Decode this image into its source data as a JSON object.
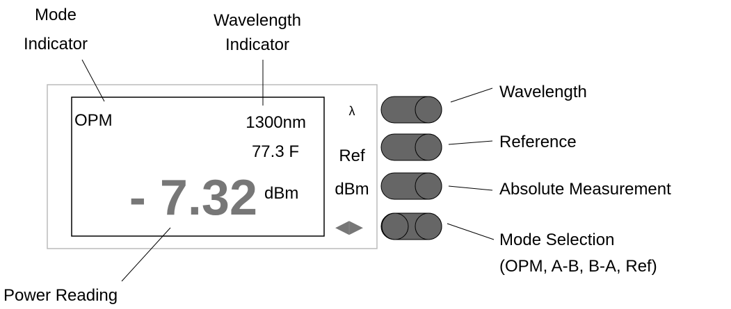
{
  "callouts": {
    "mode_indicator": [
      "Mode",
      "Indicator"
    ],
    "wavelength_indicator": [
      "Wavelength",
      "Indicator"
    ],
    "power_reading": "Power Reading",
    "wavelength": "Wavelength",
    "reference": "Reference",
    "absolute_measurement": "Absolute Measurement",
    "mode_selection": [
      "Mode Selection",
      "(OPM, A-B, B-A, Ref)"
    ]
  },
  "screen": {
    "mode": "OPM",
    "wavelength": "1300nm",
    "temperature": "77.3 F",
    "reading": "- 7.32",
    "unit": "dBm"
  },
  "buttons": {
    "wavelength": "λ",
    "reference": "Ref",
    "absolute": "dBm",
    "mode": "◀▶"
  }
}
